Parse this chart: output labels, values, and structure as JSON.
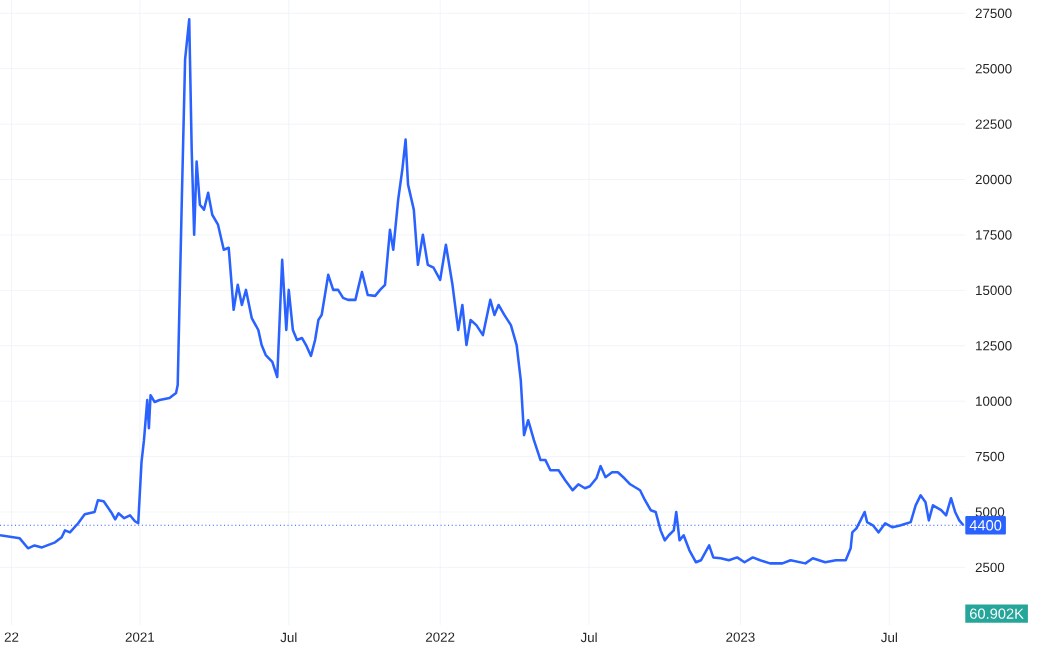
{
  "chart_data": {
    "type": "line",
    "x": [
      "2020-07-15",
      "2020-08-08",
      "2020-08-18",
      "2020-08-26",
      "2020-09-04",
      "2020-09-20",
      "2020-09-28",
      "2020-10-02",
      "2020-10-08",
      "2020-10-18",
      "2020-10-26",
      "2020-11-07",
      "2020-11-11",
      "2020-11-18",
      "2020-11-23",
      "2020-11-28",
      "2020-12-02",
      "2020-12-06",
      "2020-12-13",
      "2020-12-20",
      "2020-12-26",
      "2020-12-30",
      "2021-01-03",
      "2021-01-06",
      "2021-01-10",
      "2021-01-12",
      "2021-01-14",
      "2021-01-19",
      "2021-01-25",
      "2021-02-06",
      "2021-02-14",
      "2021-02-16",
      "2021-02-21",
      "2021-02-25",
      "2021-03-02",
      "2021-03-05",
      "2021-03-08",
      "2021-03-11",
      "2021-03-15",
      "2021-03-20",
      "2021-03-25",
      "2021-03-30",
      "2021-04-06",
      "2021-04-13",
      "2021-04-19",
      "2021-04-25",
      "2021-04-30",
      "2021-05-05",
      "2021-05-10",
      "2021-05-17",
      "2021-05-25",
      "2021-05-29",
      "2021-06-03",
      "2021-06-11",
      "2021-06-17",
      "2021-06-23",
      "2021-06-28",
      "2021-07-01",
      "2021-07-06",
      "2021-07-11",
      "2021-07-17",
      "2021-07-22",
      "2021-07-28",
      "2021-08-02",
      "2021-08-06",
      "2021-08-10",
      "2021-08-18",
      "2021-08-24",
      "2021-08-30",
      "2021-09-05",
      "2021-09-11",
      "2021-09-20",
      "2021-09-28",
      "2021-10-05",
      "2021-10-14",
      "2021-10-20",
      "2021-10-26",
      "2021-11-01",
      "2021-11-05",
      "2021-11-11",
      "2021-11-16",
      "2021-11-20",
      "2021-11-23",
      "2021-11-30",
      "2021-12-05",
      "2021-12-11",
      "2021-12-17",
      "2021-12-24",
      "2022-01-01",
      "2022-01-08",
      "2022-01-16",
      "2022-01-23",
      "2022-01-28",
      "2022-02-02",
      "2022-02-07",
      "2022-02-14",
      "2022-02-22",
      "2022-03-03",
      "2022-03-08",
      "2022-03-13",
      "2022-03-20",
      "2022-03-28",
      "2022-04-04",
      "2022-04-09",
      "2022-04-13",
      "2022-04-18",
      "2022-04-25",
      "2022-05-03",
      "2022-05-09",
      "2022-05-15",
      "2022-05-25",
      "2022-06-02",
      "2022-06-11",
      "2022-06-18",
      "2022-06-26",
      "2022-07-02",
      "2022-07-10",
      "2022-07-15",
      "2022-07-21",
      "2022-07-29",
      "2022-08-05",
      "2022-08-13",
      "2022-08-20",
      "2022-09-01",
      "2022-09-07",
      "2022-09-14",
      "2022-09-20",
      "2022-09-26",
      "2022-10-01",
      "2022-10-06",
      "2022-10-12",
      "2022-10-15",
      "2022-10-19",
      "2022-10-24",
      "2022-10-31",
      "2022-11-08",
      "2022-11-14",
      "2022-11-24",
      "2022-11-29",
      "2022-12-08",
      "2022-12-18",
      "2022-12-28",
      "2023-01-06",
      "2023-01-16",
      "2023-01-25",
      "2023-02-06",
      "2023-02-21",
      "2023-03-03",
      "2023-03-21",
      "2023-03-30",
      "2023-04-14",
      "2023-04-27",
      "2023-05-09",
      "2023-05-15",
      "2023-05-17",
      "2023-05-22",
      "2023-05-27",
      "2023-06-01",
      "2023-06-04",
      "2023-06-11",
      "2023-06-18",
      "2023-06-26",
      "2023-07-05",
      "2023-07-15",
      "2023-07-27",
      "2023-08-02",
      "2023-08-08",
      "2023-08-14",
      "2023-08-18",
      "2023-08-23",
      "2023-09-02",
      "2023-09-08",
      "2023-09-14",
      "2023-09-19",
      "2023-09-24",
      "2023-09-29"
    ],
    "series": [
      {
        "color": "#2962ff",
        "values": [
          3950,
          3810,
          3360,
          3490,
          3400,
          3630,
          3860,
          4170,
          4080,
          4490,
          4900,
          5000,
          5530,
          5480,
          5210,
          4940,
          4670,
          4940,
          4720,
          4850,
          4580,
          4490,
          7250,
          8240,
          10050,
          8780,
          10270,
          9960,
          10050,
          10140,
          10370,
          10730,
          19090,
          25420,
          27230,
          21350,
          17510,
          20810,
          18860,
          18640,
          19400,
          18410,
          17960,
          16830,
          16920,
          14120,
          15250,
          14340,
          15020,
          13750,
          13210,
          12530,
          12080,
          11770,
          11090,
          16380,
          13210,
          15020,
          13210,
          12760,
          12850,
          12530,
          12040,
          12760,
          13660,
          13890,
          15700,
          15020,
          15020,
          14660,
          14570,
          14570,
          15830,
          14790,
          14750,
          15020,
          15250,
          17730,
          16830,
          19090,
          20440,
          21800,
          19770,
          18640,
          16150,
          17510,
          16150,
          16020,
          15470,
          17060,
          15250,
          13210,
          14340,
          12530,
          13660,
          13430,
          12980,
          14570,
          13890,
          14340,
          13890,
          13430,
          12530,
          10950,
          8470,
          9140,
          8240,
          7340,
          7340,
          6880,
          6880,
          6430,
          5980,
          6250,
          6070,
          6160,
          6520,
          7070,
          6570,
          6790,
          6790,
          6520,
          6250,
          5980,
          5530,
          5080,
          5000,
          4170,
          3720,
          3950,
          4170,
          5000,
          3720,
          3950,
          3270,
          2730,
          2820,
          3490,
          2950,
          2910,
          2820,
          2950,
          2730,
          2950,
          2820,
          2680,
          2680,
          2820,
          2680,
          2910,
          2730,
          2820,
          2820,
          3360,
          4080,
          4260,
          4620,
          5000,
          4540,
          4400,
          4080,
          4490,
          4310,
          4400,
          4540,
          5300,
          5750,
          5440,
          4620,
          5300,
          5080,
          4850,
          5620,
          5000,
          4620,
          4400
        ]
      }
    ],
    "xlim": [
      "2020-07-15",
      "2023-10-01"
    ],
    "xticks": [
      {
        "value": "2020-07-29",
        "label": "22"
      },
      {
        "value": "2021-01-01",
        "label": "2021"
      },
      {
        "value": "2021-07-01",
        "label": "Jul"
      },
      {
        "value": "2022-01-01",
        "label": "2022"
      },
      {
        "value": "2022-07-01",
        "label": "Jul"
      },
      {
        "value": "2023-01-01",
        "label": "2023"
      },
      {
        "value": "2023-07-01",
        "label": "Jul"
      }
    ],
    "ylim": [
      -100,
      28100
    ],
    "yticks": [
      2500,
      5000,
      7500,
      10000,
      12500,
      15000,
      17500,
      20000,
      22500,
      25000,
      27500
    ],
    "ref_lines": [
      {
        "axis": "y",
        "value": 4400,
        "label": "4400",
        "color": "#2962ff",
        "line_style": "dotted"
      }
    ],
    "annotations": [
      "60.902K"
    ],
    "grid": true,
    "line_style": "solid"
  }
}
